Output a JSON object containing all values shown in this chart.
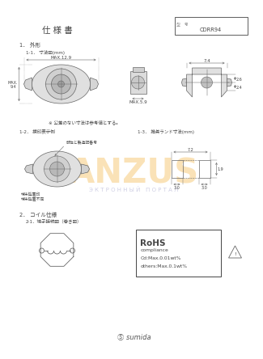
{
  "title": "仕 様 書",
  "model_label": "型　号",
  "model_number": "CDRR94",
  "bg_color": "#ffffff",
  "text_color": "#555555",
  "section1_title": "1． 外形",
  "section1_1": "1-1． 寸法図(mm)",
  "dim1": "MAX.12.9",
  "dim2": "MAX.5.9",
  "dim3": "7.4",
  "dim_h": "MAX.\n9.4",
  "note": "※ 公差のない寸法は参考値とする。",
  "section1_2": "1-2． 捜印表示例",
  "section1_3": "1-3． 推奨ランド寸法(mm)",
  "land_note1": "部位と製造記番号",
  "land_note2": "端末処置不定",
  "land_note3": "端末処置印",
  "section2_title": "2． コイル仕様",
  "section2_1": "2-1．端子接続図（巻き図）",
  "rohs_title": "RoHS",
  "rohs_line1": "compliance",
  "rohs_line2": "Cd:Max.0.01wt%",
  "rohs_line3": "others:Max.0.1wt%",
  "footer": "sumida",
  "land_dim1": "7.2",
  "land_dim2": "3.0",
  "land_dim3": "3.0",
  "land_dim4": "1.9",
  "dim_side1": "2.6",
  "dim_side2": "2.4"
}
